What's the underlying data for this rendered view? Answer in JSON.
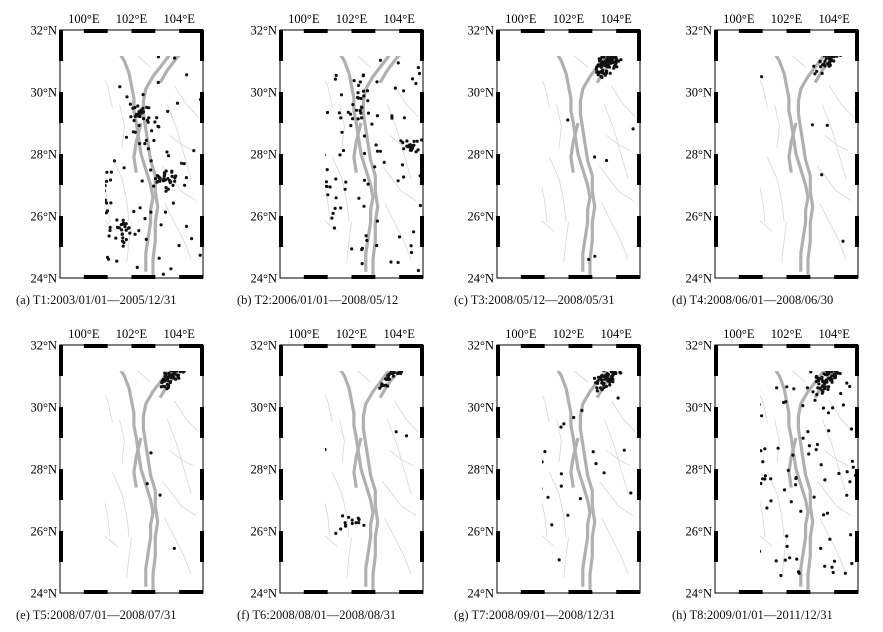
{
  "figure": {
    "lon_ticks": [
      "100°E",
      "102°E",
      "104°E"
    ],
    "lat_ticks": [
      "32°N",
      "30°N",
      "28°N",
      "26°N",
      "24°N"
    ],
    "colors": {
      "fault_major": "#b0b0b0",
      "fault_minor": "#d6d6d6",
      "event": "#111111",
      "frame": "#000000"
    }
  },
  "panels": [
    {
      "id": "a",
      "caption": "(a) T1:2003/01/01—2005/12/31",
      "density": "high-widespread"
    },
    {
      "id": "b",
      "caption": "(b) T2:2006/01/01—2008/05/12",
      "density": "medium-widespread"
    },
    {
      "id": "c",
      "caption": "(c) T3:2008/05/12—2008/05/31",
      "density": "dense-northeast-cluster"
    },
    {
      "id": "d",
      "caption": "(d) T4:2008/06/01—2008/06/30",
      "density": "northeast-cluster"
    },
    {
      "id": "e",
      "caption": "(e) T5:2008/07/01—2008/07/31",
      "density": "northeast-cluster"
    },
    {
      "id": "f",
      "caption": "(f) T6:2008/08/01—2008/08/31",
      "density": "northeast-cluster-small"
    },
    {
      "id": "g",
      "caption": "(g) T7:2008/09/01—2008/12/31",
      "density": "northeast-cluster-scattered"
    },
    {
      "id": "h",
      "caption": "(h) T8:2009/01/01—2011/12/31",
      "density": "northeast-cluster-widespread"
    }
  ]
}
